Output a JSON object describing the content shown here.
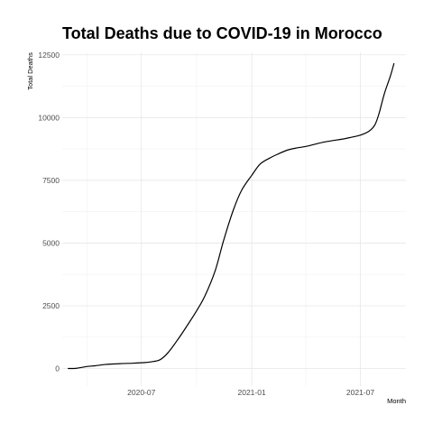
{
  "chart_data": {
    "type": "line",
    "title": "Total Deaths due to COVID-19 in Morocco",
    "xlabel": "Month",
    "ylabel": "Total Deaths",
    "x_type": "date",
    "xlim": [
      "2020-02-20",
      "2021-09-15"
    ],
    "ylim": [
      -700,
      12600
    ],
    "x_ticks": [
      {
        "value": "2020-07-01",
        "label": "2020-07"
      },
      {
        "value": "2021-01-01",
        "label": "2021-01"
      },
      {
        "value": "2021-07-01",
        "label": "2021-07"
      }
    ],
    "x_minor_ticks": [
      "2020-04-01",
      "2020-10-01",
      "2021-04-01"
    ],
    "y_ticks": [
      0,
      2500,
      5000,
      7500,
      10000,
      12500
    ],
    "y_minor_ticks": [
      1250,
      3750,
      6250,
      8750,
      11250
    ],
    "grid": true,
    "legend": "none",
    "series": [
      {
        "color": "#000000",
        "points": [
          {
            "x": "2020-03-01",
            "y": 0
          },
          {
            "x": "2020-03-15",
            "y": 10
          },
          {
            "x": "2020-04-01",
            "y": 80
          },
          {
            "x": "2020-04-15",
            "y": 110
          },
          {
            "x": "2020-05-01",
            "y": 160
          },
          {
            "x": "2020-05-15",
            "y": 180
          },
          {
            "x": "2020-06-01",
            "y": 200
          },
          {
            "x": "2020-06-15",
            "y": 210
          },
          {
            "x": "2020-07-01",
            "y": 230
          },
          {
            "x": "2020-07-15",
            "y": 260
          },
          {
            "x": "2020-08-01",
            "y": 350
          },
          {
            "x": "2020-08-15",
            "y": 650
          },
          {
            "x": "2020-09-01",
            "y": 1200
          },
          {
            "x": "2020-09-15",
            "y": 1700
          },
          {
            "x": "2020-10-01",
            "y": 2300
          },
          {
            "x": "2020-10-15",
            "y": 2900
          },
          {
            "x": "2020-11-01",
            "y": 3900
          },
          {
            "x": "2020-11-15",
            "y": 5100
          },
          {
            "x": "2020-12-01",
            "y": 6300
          },
          {
            "x": "2020-12-15",
            "y": 7100
          },
          {
            "x": "2021-01-01",
            "y": 7700
          },
          {
            "x": "2021-01-15",
            "y": 8150
          },
          {
            "x": "2021-02-01",
            "y": 8400
          },
          {
            "x": "2021-02-15",
            "y": 8560
          },
          {
            "x": "2021-03-01",
            "y": 8700
          },
          {
            "x": "2021-03-15",
            "y": 8780
          },
          {
            "x": "2021-04-01",
            "y": 8850
          },
          {
            "x": "2021-04-15",
            "y": 8930
          },
          {
            "x": "2021-05-01",
            "y": 9020
          },
          {
            "x": "2021-05-15",
            "y": 9080
          },
          {
            "x": "2021-06-01",
            "y": 9140
          },
          {
            "x": "2021-06-15",
            "y": 9210
          },
          {
            "x": "2021-07-01",
            "y": 9300
          },
          {
            "x": "2021-07-15",
            "y": 9450
          },
          {
            "x": "2021-07-25",
            "y": 9700
          },
          {
            "x": "2021-08-01",
            "y": 10150
          },
          {
            "x": "2021-08-10",
            "y": 10950
          },
          {
            "x": "2021-08-20",
            "y": 11650
          },
          {
            "x": "2021-08-26",
            "y": 12150
          }
        ]
      }
    ]
  }
}
